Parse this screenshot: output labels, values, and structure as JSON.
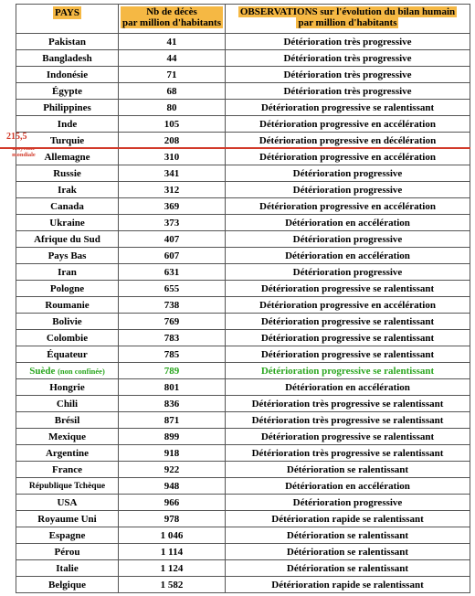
{
  "headers": {
    "country": "PAYS",
    "deaths_line1": "Nb de décès",
    "deaths_line2": "par million d'habitants",
    "obs_line1": "OBSERVATIONS sur l'évolution  du bilan humain",
    "obs_line2": "par million d'habitants"
  },
  "annotation": {
    "value": "215,5",
    "label_line1": "moyenne",
    "label_line2": "mondiale"
  },
  "colors": {
    "header_highlight": "#f5b844",
    "average_line": "#d23a2a",
    "sweden_row": "#2aa61f"
  },
  "rows": [
    {
      "country": "Pakistan",
      "deaths": "41",
      "obs": "Détérioration très progressive"
    },
    {
      "country": "Bangladesh",
      "deaths": "44",
      "obs": "Détérioration très progressive"
    },
    {
      "country": "Indonésie",
      "deaths": "71",
      "obs": "Détérioration très progressive"
    },
    {
      "country": "Égypte",
      "deaths": "68",
      "obs": "Détérioration très progressive"
    },
    {
      "country": "Philippines",
      "deaths": "80",
      "obs": "Détérioration progressive se ralentissant"
    },
    {
      "country": "Inde",
      "deaths": "105",
      "obs": "Détérioration progressive en accélération"
    },
    {
      "country": "Turquie",
      "deaths": "208",
      "obs": "Détérioration progressive en décélération"
    },
    {
      "country": "Allemagne",
      "deaths": "310",
      "obs": "Détérioration progressive en accélération"
    },
    {
      "country": "Russie",
      "deaths": "341",
      "obs": "Détérioration progressive"
    },
    {
      "country": "Irak",
      "deaths": "312",
      "obs": "Détérioration progressive"
    },
    {
      "country": "Canada",
      "deaths": "369",
      "obs": "Détérioration progressive en accélération"
    },
    {
      "country": "Ukraine",
      "deaths": "373",
      "obs": "Détérioration  en accélération"
    },
    {
      "country": "Afrique du Sud",
      "deaths": "407",
      "obs": "Détérioration progressive"
    },
    {
      "country": "Pays Bas",
      "deaths": "607",
      "obs": "Détérioration en accélération"
    },
    {
      "country": "Iran",
      "deaths": "631",
      "obs": "Détérioration progressive"
    },
    {
      "country": "Pologne",
      "deaths": "655",
      "obs": "Détérioration progressive  se ralentissant"
    },
    {
      "country": "Roumanie",
      "deaths": "738",
      "obs": "Détérioration progressive en accélération"
    },
    {
      "country": "Bolivie",
      "deaths": "769",
      "obs": "Détérioration progressive se ralentissant"
    },
    {
      "country": "Colombie",
      "deaths": "783",
      "obs": "Détérioration progressive se ralentissant"
    },
    {
      "country": "Équateur",
      "deaths": "785",
      "obs": "Détérioration progressive se ralentissant"
    },
    {
      "country": "Suède",
      "country_note": "(non confinée)",
      "deaths": "789",
      "obs": "Détérioration progressive se ralentissant",
      "highlight": true
    },
    {
      "country": "Hongrie",
      "deaths": "801",
      "obs": "Détérioration en accélération"
    },
    {
      "country": "Chili",
      "deaths": "836",
      "obs": "Détérioration très progressive se ralentissant"
    },
    {
      "country": "Brésil",
      "deaths": "871",
      "obs": "Détérioration très progressive se ralentissant"
    },
    {
      "country": "Mexique",
      "deaths": "899",
      "obs": "Détérioration progressive se ralentissant"
    },
    {
      "country": "Argentine",
      "deaths": "918",
      "obs": "Détérioration très progressive se ralentissant"
    },
    {
      "country": "France",
      "deaths": "922",
      "obs": "Détérioration se ralentissant"
    },
    {
      "country": "République Tchèque",
      "deaths": "948",
      "obs": "Détérioration en accélération",
      "small": true
    },
    {
      "country": "USA",
      "deaths": "966",
      "obs": "Détérioration progressive"
    },
    {
      "country": "Royaume Uni",
      "deaths": "978",
      "obs": "Détérioration rapide se ralentissant"
    },
    {
      "country": "Espagne",
      "deaths": "1 046",
      "obs": "Détérioration se ralentissant"
    },
    {
      "country": "Pérou",
      "deaths": "1 114",
      "obs": "Détérioration se ralentissant"
    },
    {
      "country": "Italie",
      "deaths": "1 124",
      "obs": "Détérioration se ralentissant"
    },
    {
      "country": "Belgique",
      "deaths": "1 582",
      "obs": "Détérioration rapide se ralentissant"
    }
  ]
}
